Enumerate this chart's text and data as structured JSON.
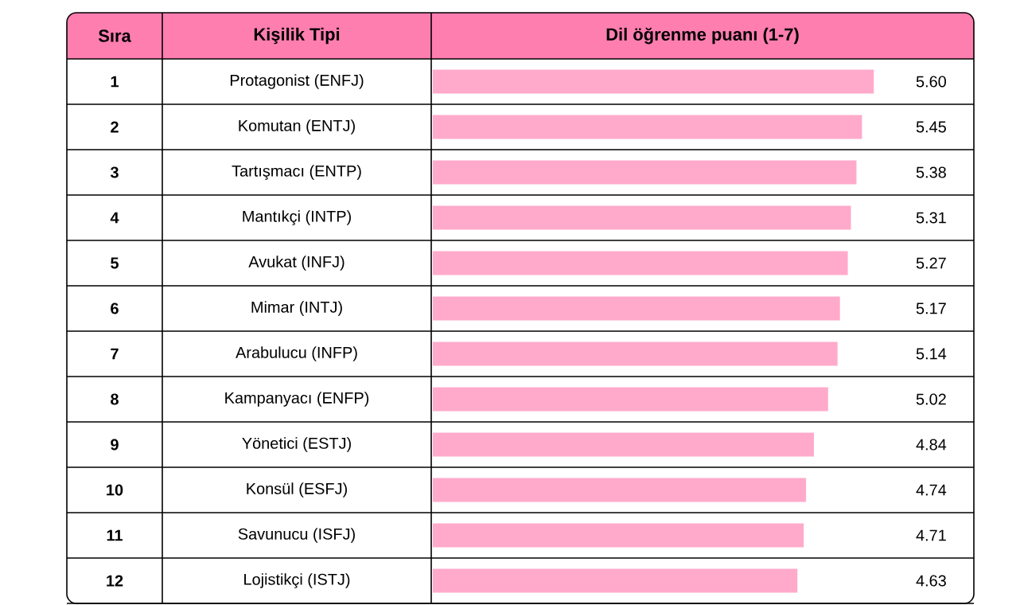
{
  "chart_data": {
    "type": "bar",
    "orientation": "horizontal",
    "xlabel": "Dil öğrenme puanı (1-7)",
    "ylabel": "Kişilik Tipi",
    "categories": [
      "Protagonist (ENFJ)",
      "Komutan (ENTJ)",
      "Tartışmacı (ENTP)",
      "Mantıkçi (INTP)",
      "Avukat (INFJ)",
      "Mimar (INTJ)",
      "Arabulucu (INFP)",
      "Kampanyacı (ENFP)",
      "Yönetici (ESTJ)",
      "Konsül (ESFJ)",
      "Savunucu (ISFJ)",
      "Lojistikçi (ISTJ)"
    ],
    "values": [
      5.6,
      5.45,
      5.38,
      5.31,
      5.27,
      5.17,
      5.14,
      5.02,
      4.84,
      4.74,
      4.71,
      4.63
    ],
    "value_labels": [
      "5.60",
      "5.45",
      "5.38",
      "5.31",
      "5.27",
      "5.17",
      "5.14",
      "5.02",
      "4.84",
      "4.74",
      "4.71",
      "4.63"
    ],
    "color": "#ffaacb",
    "tick_labels": "y",
    "annotations": [
      "Sıra",
      "1",
      "2",
      "3",
      "4",
      "5",
      "6",
      "7",
      "8",
      "9",
      "10",
      "11",
      "12"
    ]
  }
}
